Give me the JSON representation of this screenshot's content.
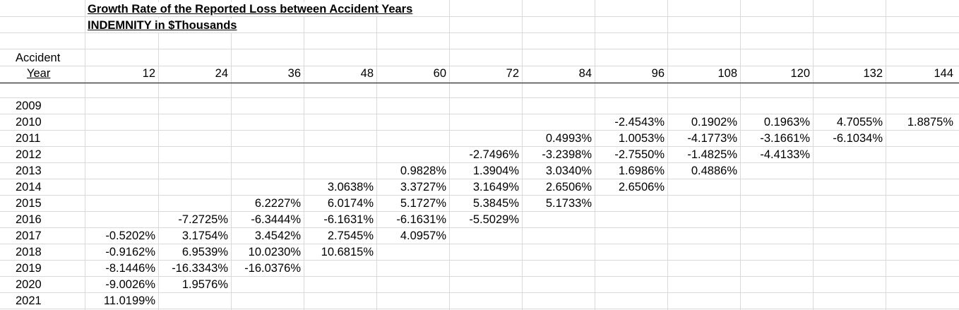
{
  "title_line1": "Growth Rate of the Reported Loss between Accident Years",
  "title_line2": "INDEMNITY in $Thousands",
  "row_header": {
    "line1": "Accident",
    "line2": "Year"
  },
  "columns": [
    "12",
    "24",
    "36",
    "48",
    "60",
    "72",
    "84",
    "96",
    "108",
    "120",
    "132",
    "144"
  ],
  "years": [
    "2009",
    "2010",
    "2011",
    "2012",
    "2013",
    "2014",
    "2015",
    "2016",
    "2017",
    "2018",
    "2019",
    "2020",
    "2021"
  ],
  "table": [
    [
      "",
      "",
      "",
      "",
      "",
      "",
      "",
      "",
      "",
      "",
      "",
      ""
    ],
    [
      "",
      "",
      "",
      "",
      "",
      "",
      "",
      "-2.4543%",
      "0.1902%",
      "0.1963%",
      "4.7055%",
      "1.8875%"
    ],
    [
      "",
      "",
      "",
      "",
      "",
      "",
      "0.4993%",
      "1.0053%",
      "-4.1773%",
      "-3.1661%",
      "-6.1034%",
      ""
    ],
    [
      "",
      "",
      "",
      "",
      "",
      "-2.7496%",
      "-3.2398%",
      "-2.7550%",
      "-1.4825%",
      "-4.4133%",
      "",
      ""
    ],
    [
      "",
      "",
      "",
      "",
      "0.9828%",
      "1.3904%",
      "3.0340%",
      "1.6986%",
      "0.4886%",
      "",
      "",
      ""
    ],
    [
      "",
      "",
      "",
      "3.0638%",
      "3.3727%",
      "3.1649%",
      "2.6506%",
      "2.6506%",
      "",
      "",
      "",
      ""
    ],
    [
      "",
      "",
      "6.2227%",
      "6.0174%",
      "5.1727%",
      "5.3845%",
      "5.1733%",
      "",
      "",
      "",
      "",
      ""
    ],
    [
      "",
      "-7.2725%",
      "-6.3444%",
      "-6.1631%",
      "-6.1631%",
      "-5.5029%",
      "",
      "",
      "",
      "",
      "",
      ""
    ],
    [
      "-0.5202%",
      "3.1754%",
      "3.4542%",
      "2.7545%",
      "4.0957%",
      "",
      "",
      "",
      "",
      "",
      "",
      ""
    ],
    [
      "-0.9162%",
      "6.9539%",
      "10.0230%",
      "10.6815%",
      "",
      "",
      "",
      "",
      "",
      "",
      "",
      ""
    ],
    [
      "-8.1446%",
      "-16.3343%",
      "-16.0376%",
      "",
      "",
      "",
      "",
      "",
      "",
      "",
      "",
      ""
    ],
    [
      "-9.0026%",
      "1.9576%",
      "",
      "",
      "",
      "",
      "",
      "",
      "",
      "",
      "",
      ""
    ],
    [
      "11.0199%",
      "",
      "",
      "",
      "",
      "",
      "",
      "",
      "",
      "",
      "",
      ""
    ]
  ]
}
